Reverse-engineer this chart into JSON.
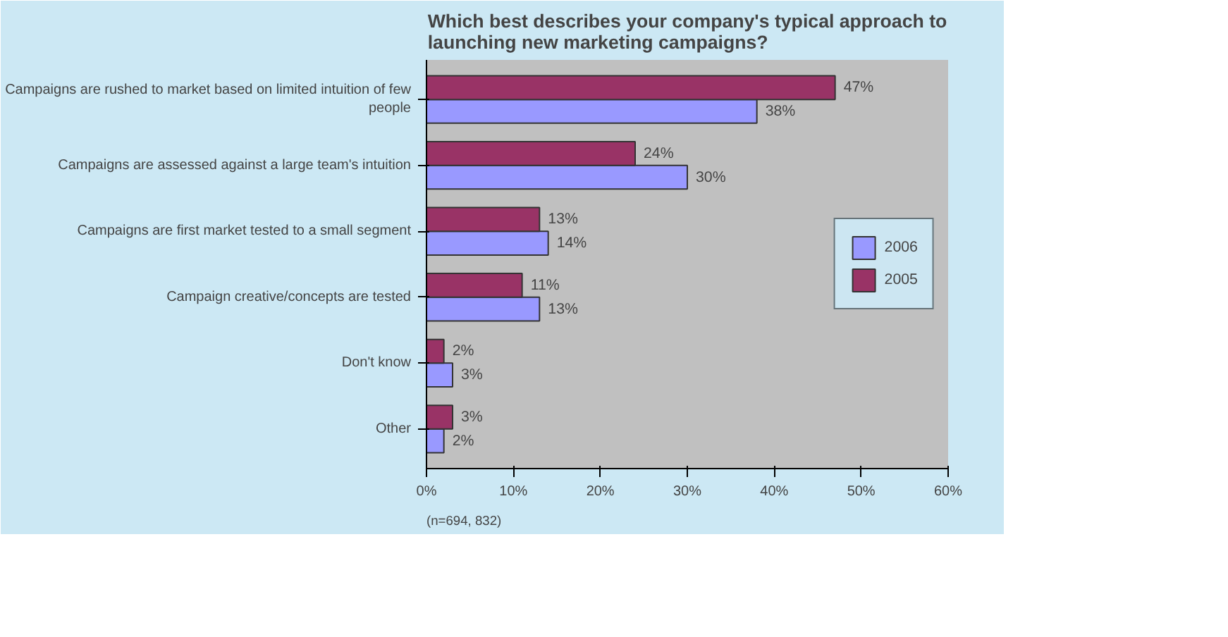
{
  "chart_data": {
    "type": "bar",
    "orientation": "horizontal",
    "title": "Which best describes your company's typical approach to launching new marketing campaigns?",
    "categories": [
      "Campaigns are rushed to market based on limited intuition of few people",
      "Campaigns are assessed against a large team's intuition",
      "Campaigns are first market tested to a small segment",
      "Campaign creative/concepts are tested",
      "Don't know",
      "Other"
    ],
    "series": [
      {
        "name": "2006",
        "color": "#9999ff",
        "values": [
          38,
          30,
          14,
          13,
          3,
          2
        ],
        "value_labels": [
          "38%",
          "30%",
          "14%",
          "13%",
          "3%",
          "2%"
        ]
      },
      {
        "name": "2005",
        "color": "#993366",
        "values": [
          47,
          24,
          13,
          11,
          2,
          3
        ],
        "value_labels": [
          "47%",
          "24%",
          "13%",
          "11%",
          "2%",
          "3%"
        ]
      }
    ],
    "xlim": [
      0,
      60
    ],
    "xticks": [
      {
        "value": 0,
        "label": "0%"
      },
      {
        "value": 10,
        "label": "10%"
      },
      {
        "value": 20,
        "label": "20%"
      },
      {
        "value": 30,
        "label": "30%"
      },
      {
        "value": 40,
        "label": "40%"
      },
      {
        "value": 50,
        "label": "50%"
      },
      {
        "value": 60,
        "label": "60%"
      }
    ],
    "grid": false,
    "legend": "right",
    "annotations": [
      "(n=694, 832)"
    ]
  }
}
